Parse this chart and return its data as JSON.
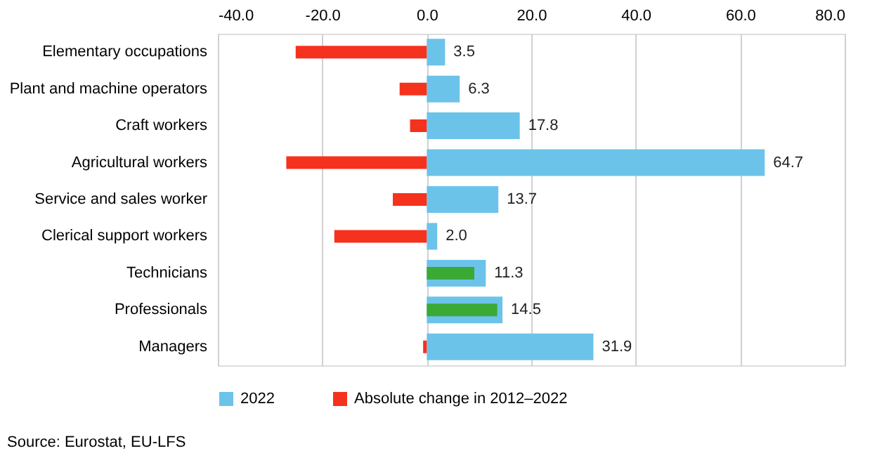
{
  "chart_data": {
    "type": "bar",
    "orientation": "horizontal",
    "categories": [
      "Elementary occupations",
      "Plant and machine operators",
      "Craft workers",
      "Agricultural workers",
      "Service and sales worker",
      "Clerical support workers",
      "Technicians",
      "Professionals",
      "Managers"
    ],
    "series": [
      {
        "name": "2022",
        "color": "#6cc3ea",
        "values": [
          3.5,
          6.3,
          17.8,
          64.7,
          13.7,
          2.0,
          11.3,
          14.5,
          31.9
        ],
        "value_labels": [
          "3.5",
          "6.3",
          "17.8",
          "64.7",
          "13.7",
          "2.0",
          "11.3",
          "14.5",
          "31.9"
        ]
      },
      {
        "name": "Absolute change in 2012–2022",
        "color": "#f5321e",
        "colors": [
          "#f5321e",
          "#f5321e",
          "#f5321e",
          "#f5321e",
          "#f5321e",
          "#f5321e",
          "#3aaa35",
          "#3aaa35",
          "#f5321e"
        ],
        "values": [
          -25.1,
          -5.2,
          -3.2,
          -26.9,
          -6.5,
          -17.7,
          9.1,
          13.5,
          -0.7
        ]
      }
    ],
    "xlim": [
      -40,
      80
    ],
    "xticks": [
      {
        "value": -40,
        "label": "-40.0"
      },
      {
        "value": -20,
        "label": "-20.0"
      },
      {
        "value": 0,
        "label": "0.0"
      },
      {
        "value": 20,
        "label": "20.0"
      },
      {
        "value": 40,
        "label": "40.0"
      },
      {
        "value": 60,
        "label": "60.0"
      },
      {
        "value": 80,
        "label": "80.0"
      }
    ],
    "grid": "x",
    "legend": "bottom",
    "annotations": [
      "Source: Eurostat, EU-LFS"
    ]
  }
}
